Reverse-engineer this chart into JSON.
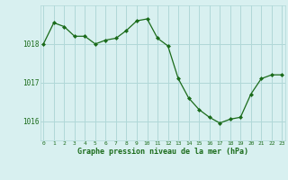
{
  "x": [
    0,
    1,
    2,
    3,
    4,
    5,
    6,
    7,
    8,
    9,
    10,
    11,
    12,
    13,
    14,
    15,
    16,
    17,
    18,
    19,
    20,
    21,
    22,
    23
  ],
  "y": [
    1018.0,
    1018.55,
    1018.45,
    1018.2,
    1018.2,
    1018.0,
    1018.1,
    1018.15,
    1018.35,
    1018.6,
    1018.65,
    1018.15,
    1017.95,
    1017.1,
    1016.6,
    1016.3,
    1016.1,
    1015.95,
    1016.05,
    1016.1,
    1016.7,
    1017.1,
    1017.2,
    1017.2
  ],
  "line_color": "#1a6b1a",
  "marker_color": "#1a6b1a",
  "bg_color": "#d8f0f0",
  "grid_color": "#b0d8d8",
  "text_color": "#1a6b1a",
  "xlabel": "Graphe pression niveau de la mer (hPa)",
  "yticks": [
    1016,
    1017,
    1018
  ],
  "xticks": [
    0,
    1,
    2,
    3,
    4,
    5,
    6,
    7,
    8,
    9,
    10,
    11,
    12,
    13,
    14,
    15,
    16,
    17,
    18,
    19,
    20,
    21,
    22,
    23
  ],
  "ylim": [
    1015.5,
    1019.0
  ],
  "xlim": [
    -0.3,
    23.3
  ]
}
